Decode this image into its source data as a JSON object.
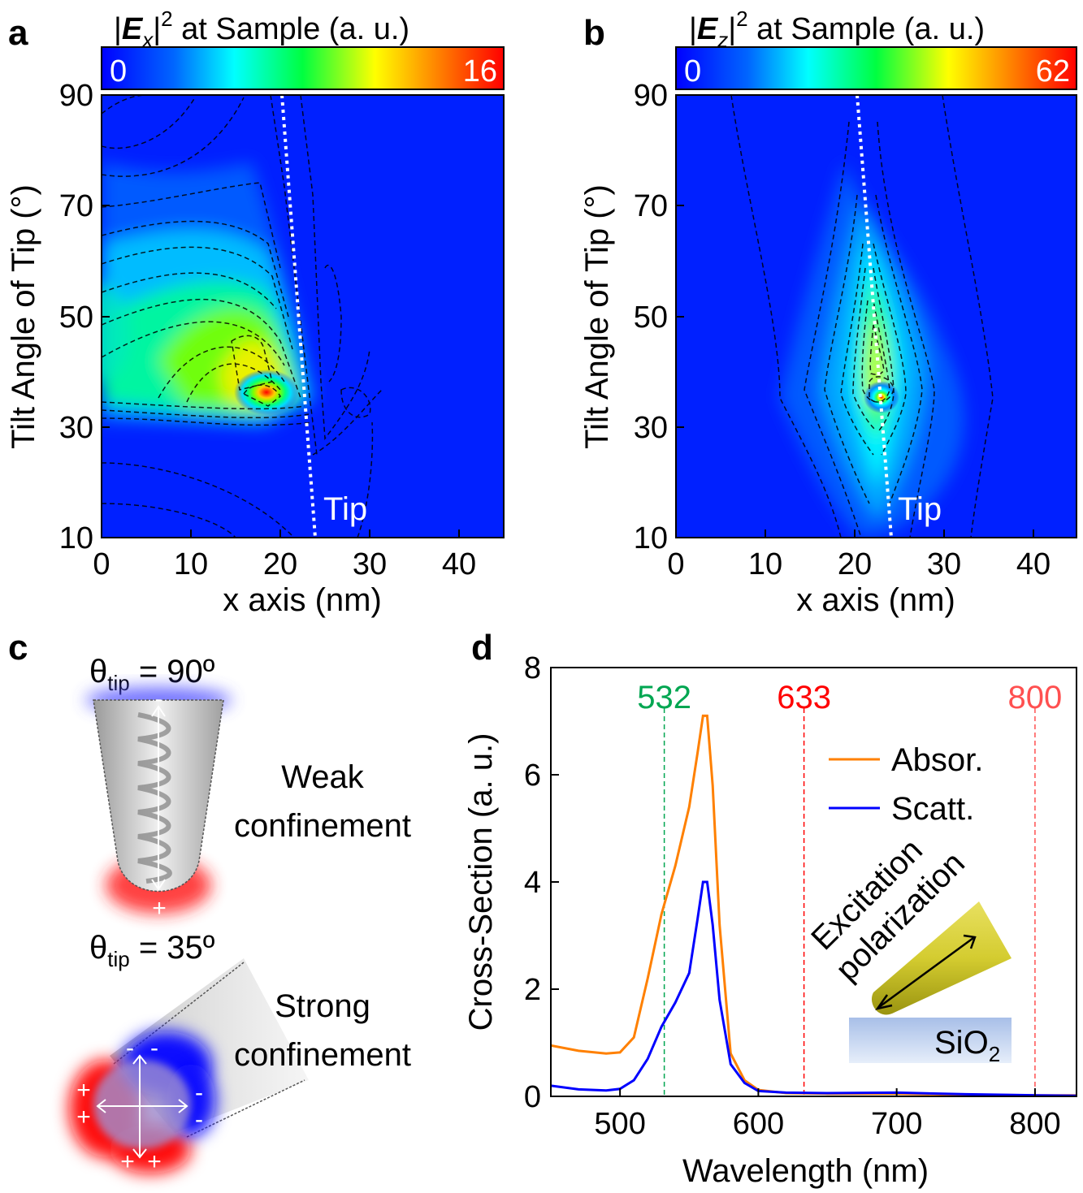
{
  "panels": {
    "a": {
      "label": "a",
      "title_prefix": "|",
      "title_sym": "E",
      "title_sub": "x",
      "title_suffix": "|",
      "title_sup": "2",
      "title_rest": " at Sample (a. u.)",
      "cbar_min": "0",
      "cbar_max": "16",
      "tip_label": "Tip",
      "xlabel": "x axis (nm)",
      "ylabel": "Tilt Angle of Tip (°)",
      "xticks": [
        "0",
        "10",
        "20",
        "30",
        "40"
      ],
      "yticks": [
        "10",
        "30",
        "50",
        "70",
        "90"
      ]
    },
    "b": {
      "label": "b",
      "title_prefix": "|",
      "title_sym": "E",
      "title_sub": "z",
      "title_suffix": "|",
      "title_sup": "2",
      "title_rest": " at Sample (a. u.)",
      "cbar_min": "0",
      "cbar_max": "62",
      "tip_label": "Tip",
      "xlabel": "x axis (nm)",
      "ylabel": "Tilt Angle of Tip (°)",
      "xticks": [
        "0",
        "10",
        "20",
        "30",
        "40"
      ],
      "yticks": [
        "10",
        "30",
        "50",
        "70",
        "90"
      ]
    },
    "c": {
      "label": "c",
      "theta1_sym": "θ",
      "theta1_sub": "tip",
      "theta1_val": " = 90º",
      "weak_line1": "Weak",
      "weak_line2": "confinement",
      "theta2_sym": "θ",
      "theta2_sub": "tip",
      "theta2_val": " = 35º",
      "strong_line1": "Strong",
      "strong_line2": "confinement",
      "minus": "-",
      "plus": "+"
    },
    "d": {
      "label": "d",
      "inset_text1": "Excitation",
      "inset_text2": "polarization",
      "substrate_main": "SiO",
      "substrate_sub": "2"
    }
  },
  "chart_data": [
    {
      "type": "heatmap",
      "panel": "a",
      "title": "|Ex|^2 at Sample (a. u.)",
      "xlabel": "x axis (nm)",
      "ylabel": "Tilt Angle of Tip (°)",
      "xlim": [
        0,
        45
      ],
      "ylim": [
        10,
        90
      ],
      "zlim": [
        0,
        16
      ],
      "peak": {
        "x": 18,
        "y": 36,
        "value": 16
      },
      "tip_line": {
        "x_at_90": 20.5,
        "x_at_10": 24
      }
    },
    {
      "type": "heatmap",
      "panel": "b",
      "title": "|Ez|^2 at Sample (a. u.)",
      "xlabel": "x axis (nm)",
      "ylabel": "Tilt Angle of Tip (°)",
      "xlim": [
        0,
        45
      ],
      "ylim": [
        10,
        90
      ],
      "zlim": [
        0,
        62
      ],
      "peak": {
        "x": 23,
        "y": 36,
        "value": 62
      },
      "tip_line": {
        "x_at_90": 21,
        "x_at_10": 24.5
      }
    },
    {
      "type": "line",
      "panel": "d",
      "xlabel": "Wavelength (nm)",
      "ylabel": "Cross-Section (a. u.)",
      "xlim": [
        450,
        830
      ],
      "ylim": [
        0,
        8
      ],
      "xticks": [
        500,
        600,
        700,
        800
      ],
      "yticks": [
        0,
        2,
        4,
        6,
        8
      ],
      "series": [
        {
          "name": "Absor.",
          "color": "#ff8000",
          "x": [
            450,
            470,
            490,
            500,
            510,
            520,
            530,
            540,
            550,
            556,
            560,
            563,
            567,
            572,
            580,
            590,
            600,
            620,
            650,
            700,
            750,
            800,
            830
          ],
          "y": [
            0.95,
            0.85,
            0.8,
            0.82,
            1.1,
            2.2,
            3.4,
            4.3,
            5.4,
            6.4,
            7.1,
            7.1,
            5.8,
            3.2,
            0.8,
            0.3,
            0.12,
            0.06,
            0.05,
            0.05,
            0.03,
            0.02,
            0.02
          ]
        },
        {
          "name": "Scatt.",
          "color": "#0000ff",
          "x": [
            450,
            470,
            490,
            500,
            510,
            520,
            530,
            540,
            550,
            556,
            560,
            563,
            567,
            572,
            580,
            590,
            600,
            620,
            650,
            700,
            750,
            800,
            830
          ],
          "y": [
            0.2,
            0.13,
            0.11,
            0.14,
            0.3,
            0.7,
            1.3,
            1.75,
            2.3,
            3.3,
            4.0,
            4.0,
            3.2,
            1.8,
            0.6,
            0.25,
            0.1,
            0.07,
            0.06,
            0.07,
            0.04,
            0.02,
            0.01
          ]
        }
      ],
      "vlines": [
        {
          "x": 532,
          "label": "532",
          "color": "#00a651"
        },
        {
          "x": 633,
          "label": "633",
          "color": "#ff0000"
        },
        {
          "x": 800,
          "label": "800",
          "color": "#ff5050"
        }
      ]
    }
  ]
}
